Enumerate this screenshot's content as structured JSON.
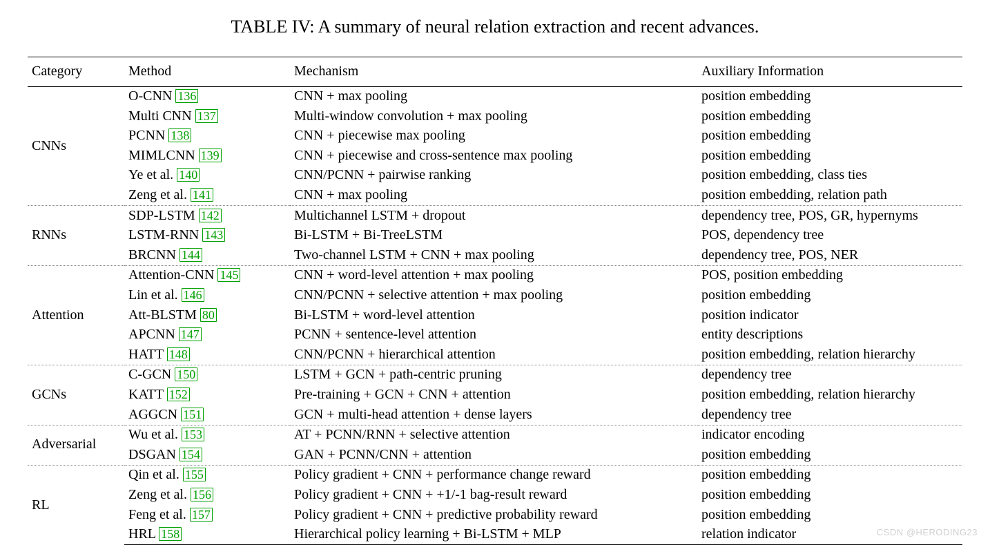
{
  "caption": "TABLE IV: A summary of neural relation extraction and recent advances.",
  "columns": [
    "Category",
    "Method",
    "Mechanism",
    "Auxiliary Information"
  ],
  "cite_color": "#00a000",
  "text_color": "#000000",
  "background_color": "#ffffff",
  "rule_color": "#000000",
  "dotted_color": "#888888",
  "font_family": "Times New Roman",
  "caption_fontsize": 26,
  "body_fontsize": 20,
  "watermark": "CSDN @HERODING23",
  "groups": [
    {
      "category": "CNNs",
      "rows": [
        {
          "method_text": "O-CNN ",
          "cite": "136",
          "mechanism": "CNN + max pooling",
          "aux": "position embedding"
        },
        {
          "method_text": "Multi CNN ",
          "cite": "137",
          "mechanism": "Multi-window convolution + max pooling",
          "aux": "position embedding"
        },
        {
          "method_text": "PCNN ",
          "cite": "138",
          "mechanism": "CNN + piecewise max pooling",
          "aux": "position embedding"
        },
        {
          "method_text": "MIMLCNN ",
          "cite": "139",
          "mechanism": "CNN + piecewise and cross-sentence max pooling",
          "aux": "position embedding"
        },
        {
          "method_text": "Ye et al. ",
          "cite": "140",
          "mechanism": "CNN/PCNN + pairwise ranking",
          "aux": "position embedding, class ties"
        },
        {
          "method_text": "Zeng et al. ",
          "cite": "141",
          "mechanism": "CNN + max pooling",
          "aux": "position embedding, relation path"
        }
      ]
    },
    {
      "category": "RNNs",
      "rows": [
        {
          "method_text": "SDP-LSTM ",
          "cite": "142",
          "mechanism": "Multichannel LSTM + dropout",
          "aux": "dependency tree, POS, GR, hypernyms"
        },
        {
          "method_text": "LSTM-RNN ",
          "cite": "143",
          "mechanism": "Bi-LSTM + Bi-TreeLSTM",
          "aux": "POS, dependency tree"
        },
        {
          "method_text": "BRCNN ",
          "cite": "144",
          "mechanism": "Two-channel LSTM + CNN + max pooling",
          "aux": "dependency tree, POS, NER"
        }
      ]
    },
    {
      "category": "Attention",
      "rows": [
        {
          "method_text": "Attention-CNN ",
          "cite": "145",
          "mechanism": "CNN + word-level attention + max pooling",
          "aux": "POS, position embedding"
        },
        {
          "method_text": "Lin et al. ",
          "cite": "146",
          "mechanism": "CNN/PCNN + selective attention + max pooling",
          "aux": "position embedding"
        },
        {
          "method_text": "Att-BLSTM ",
          "cite": "80",
          "mechanism": "Bi-LSTM + word-level attention",
          "aux": "position indicator"
        },
        {
          "method_text": "APCNN ",
          "cite": "147",
          "mechanism": "PCNN + sentence-level attention",
          "aux": "entity descriptions"
        },
        {
          "method_text": "HATT ",
          "cite": "148",
          "mechanism": "CNN/PCNN + hierarchical attention",
          "aux": "position embedding, relation hierarchy"
        }
      ]
    },
    {
      "category": "GCNs",
      "rows": [
        {
          "method_text": "C-GCN ",
          "cite": "150",
          "mechanism": "LSTM + GCN + path-centric pruning",
          "aux": "dependency tree"
        },
        {
          "method_text": "KATT ",
          "cite": "152",
          "mechanism": "Pre-training + GCN + CNN + attention",
          "aux": "position embedding, relation hierarchy"
        },
        {
          "method_text": "AGGCN ",
          "cite": "151",
          "mechanism": "GCN + multi-head attention + dense layers",
          "aux": "dependency tree"
        }
      ]
    },
    {
      "category": "Adversarial",
      "rows": [
        {
          "method_text": "Wu et al. ",
          "cite": "153",
          "mechanism": "AT + PCNN/RNN + selective attention",
          "aux": "indicator encoding"
        },
        {
          "method_text": "DSGAN ",
          "cite": "154",
          "mechanism": "GAN + PCNN/CNN + attention",
          "aux": "position embedding"
        }
      ]
    },
    {
      "category": "RL",
      "rows": [
        {
          "method_text": "Qin et al. ",
          "cite": "155",
          "mechanism": "Policy gradient + CNN + performance change reward",
          "aux": "position embedding"
        },
        {
          "method_text": "Zeng et al. ",
          "cite": "156",
          "mechanism": "Policy gradient + CNN + +1/-1 bag-result reward",
          "aux": "position embedding"
        },
        {
          "method_text": "Feng et al. ",
          "cite": "157",
          "mechanism": "Policy gradient + CNN + predictive probability reward",
          "aux": "position embedding"
        },
        {
          "method_text": "HRL ",
          "cite": "158",
          "mechanism": "Hierarchical policy learning + Bi-LSTM + MLP",
          "aux": "relation indicator"
        }
      ]
    }
  ]
}
